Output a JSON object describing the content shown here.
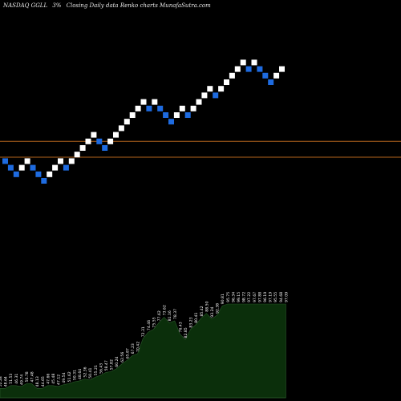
{
  "header": {
    "symbol": "NASDAQ GGLL",
    "change": "3%",
    "description": "Closing Daily data Renko charts MunafaSutra.com"
  },
  "colors": {
    "background": "#000000",
    "up_brick": "#ffffff",
    "down_brick": "#1e6be0",
    "ref_line": "#b5651d",
    "volume_fill": "#0b2f0b"
  },
  "chart_data": {
    "type": "renko",
    "bricks": [
      {
        "price": 22,
        "dir": "down"
      },
      {
        "price": 21,
        "dir": "down"
      },
      {
        "price": 20,
        "dir": "down"
      },
      {
        "price": 21,
        "dir": "up"
      },
      {
        "price": 22,
        "dir": "up"
      },
      {
        "price": 21,
        "dir": "down"
      },
      {
        "price": 20,
        "dir": "down"
      },
      {
        "price": 19,
        "dir": "down"
      },
      {
        "price": 20,
        "dir": "up"
      },
      {
        "price": 21,
        "dir": "up"
      },
      {
        "price": 22,
        "dir": "up"
      },
      {
        "price": 21,
        "dir": "down"
      },
      {
        "price": 22,
        "dir": "up"
      },
      {
        "price": 23,
        "dir": "up"
      },
      {
        "price": 24,
        "dir": "up"
      },
      {
        "price": 25,
        "dir": "up"
      },
      {
        "price": 26,
        "dir": "up"
      },
      {
        "price": 25,
        "dir": "down"
      },
      {
        "price": 24,
        "dir": "down"
      },
      {
        "price": 25,
        "dir": "up"
      },
      {
        "price": 26,
        "dir": "up"
      },
      {
        "price": 27,
        "dir": "up"
      },
      {
        "price": 28,
        "dir": "up"
      },
      {
        "price": 29,
        "dir": "up"
      },
      {
        "price": 30,
        "dir": "up"
      },
      {
        "price": 31,
        "dir": "up"
      },
      {
        "price": 30,
        "dir": "down"
      },
      {
        "price": 31,
        "dir": "up"
      },
      {
        "price": 30,
        "dir": "down"
      },
      {
        "price": 29,
        "dir": "down"
      },
      {
        "price": 28,
        "dir": "down"
      },
      {
        "price": 29,
        "dir": "up"
      },
      {
        "price": 30,
        "dir": "up"
      },
      {
        "price": 29,
        "dir": "down"
      },
      {
        "price": 30,
        "dir": "up"
      },
      {
        "price": 31,
        "dir": "up"
      },
      {
        "price": 32,
        "dir": "up"
      },
      {
        "price": 33,
        "dir": "up"
      },
      {
        "price": 32,
        "dir": "down"
      },
      {
        "price": 33,
        "dir": "up"
      },
      {
        "price": 34,
        "dir": "up"
      },
      {
        "price": 35,
        "dir": "up"
      },
      {
        "price": 36,
        "dir": "up"
      },
      {
        "price": 37,
        "dir": "up"
      },
      {
        "price": 36,
        "dir": "down"
      },
      {
        "price": 37,
        "dir": "up"
      },
      {
        "price": 36,
        "dir": "down"
      },
      {
        "price": 35,
        "dir": "down"
      },
      {
        "price": 34,
        "dir": "down"
      },
      {
        "price": 35,
        "dir": "up"
      },
      {
        "price": 36,
        "dir": "up"
      }
    ],
    "reference_lines": [
      25.0,
      22.6
    ],
    "volume_labels": [
      "52.28",
      "48.64",
      "51.53",
      "46.31",
      "49.74",
      "50.78",
      "47.48",
      "48.13",
      "44.65",
      "47.66",
      "45.48",
      "47.12",
      "49.54",
      "51.62",
      "50.31",
      "48.64",
      "52.36",
      "50.41",
      "55.21",
      "56.43",
      "58.47",
      "57.82",
      "60.24",
      "62.56",
      "65.87",
      "67.23",
      "70.42",
      "72.31",
      "74.46",
      "75.55",
      "77.62",
      "73.62",
      "81.16",
      "78.37",
      "76.43",
      "82.85",
      "83.23",
      "80.41",
      "85.42",
      "88.50",
      "93.24",
      "92.38",
      "90.81",
      "95.75",
      "96.34",
      "99.15",
      "98.72",
      "97.22",
      "97.67",
      "97.88",
      "96.19",
      "97.19",
      "95.55",
      "94.68",
      "97.09"
    ],
    "volume_area": [
      {
        "x": 0,
        "v": 10
      },
      {
        "x": 1,
        "v": 10
      },
      {
        "x": 2,
        "v": 13
      },
      {
        "x": 3,
        "v": 13
      },
      {
        "x": 4,
        "v": 12
      },
      {
        "x": 5,
        "v": 15
      },
      {
        "x": 6,
        "v": 15
      },
      {
        "x": 7,
        "v": 10
      },
      {
        "x": 8,
        "v": 10
      },
      {
        "x": 9,
        "v": 13
      },
      {
        "x": 10,
        "v": 13
      },
      {
        "x": 11,
        "v": 12
      },
      {
        "x": 12,
        "v": 14
      },
      {
        "x": 13,
        "v": 15
      },
      {
        "x": 14,
        "v": 17
      },
      {
        "x": 15,
        "v": 18
      },
      {
        "x": 16,
        "v": 20
      },
      {
        "x": 17,
        "v": 19
      },
      {
        "x": 18,
        "v": 22
      },
      {
        "x": 19,
        "v": 24
      },
      {
        "x": 20,
        "v": 27
      },
      {
        "x": 21,
        "v": 28
      },
      {
        "x": 22,
        "v": 31
      },
      {
        "x": 23,
        "v": 36
      },
      {
        "x": 24,
        "v": 40
      },
      {
        "x": 25,
        "v": 45
      },
      {
        "x": 26,
        "v": 47
      },
      {
        "x": 27,
        "v": 63
      },
      {
        "x": 28,
        "v": 70
      },
      {
        "x": 29,
        "v": 73
      },
      {
        "x": 30,
        "v": 80
      },
      {
        "x": 31,
        "v": 86
      },
      {
        "x": 32,
        "v": 80
      },
      {
        "x": 33,
        "v": 82
      },
      {
        "x": 34,
        "v": 68
      },
      {
        "x": 35,
        "v": 62
      },
      {
        "x": 36,
        "v": 73
      },
      {
        "x": 37,
        "v": 78
      },
      {
        "x": 38,
        "v": 85
      },
      {
        "x": 39,
        "v": 90
      },
      {
        "x": 40,
        "v": 84
      },
      {
        "x": 41,
        "v": 88
      },
      {
        "x": 42,
        "v": 98
      },
      {
        "x": 43,
        "v": 100
      },
      {
        "x": 44,
        "v": 100
      },
      {
        "x": 45,
        "v": 100
      },
      {
        "x": 46,
        "v": 100
      },
      {
        "x": 47,
        "v": 100
      },
      {
        "x": 48,
        "v": 100
      },
      {
        "x": 49,
        "v": 100
      },
      {
        "x": 50,
        "v": 100
      },
      {
        "x": 51,
        "v": 100
      },
      {
        "x": 52,
        "v": 100
      },
      {
        "x": 53,
        "v": 100
      },
      {
        "x": 54,
        "v": 100
      }
    ]
  }
}
